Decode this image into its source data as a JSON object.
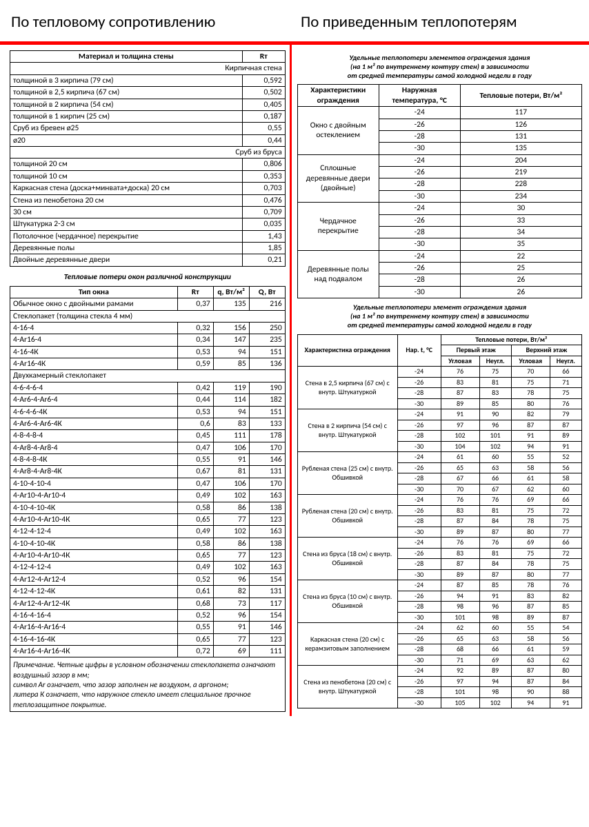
{
  "title_left": "По тепловому сопротивлению",
  "title_right": "По приведенным теплопотерям",
  "t1": {
    "headers": [
      "Материал и толщина стены",
      "Rт"
    ],
    "sections": [
      {
        "header": "Кирпичная стена",
        "rows": [
          [
            "толщиной в 3 кирпича (79 см)",
            "0,592"
          ],
          [
            "толщиной в 2,5 кирпича (67 см)",
            "0,502"
          ],
          [
            "толщиной в 2 кирпича (54 см)",
            "0,405"
          ],
          [
            "толщиной в 1 кирпич (25 см)",
            "0,187"
          ],
          [
            "Сруб из бревен ø25",
            "0,55"
          ],
          [
            "ø20",
            "0,44"
          ]
        ]
      },
      {
        "header": "Сруб из бруса",
        "rows": [
          [
            "толщиной 20 см",
            "0,806"
          ],
          [
            "толщиной 10 см",
            "0,353"
          ],
          [
            "Каркасная стена (доска+минвата+доска) 20 см",
            "0,703"
          ],
          [
            "Стена из пенобетона 20 см",
            "0,476"
          ],
          [
            "30 см",
            "0,709"
          ],
          [
            "Штукатурка 2-3 см",
            "0,035"
          ],
          [
            "Потолочное (чердачное) перекрытие",
            "1,43"
          ],
          [
            "Деревянные полы",
            "1,85"
          ],
          [
            "Двойные деревянные двери",
            "0,21"
          ]
        ]
      }
    ]
  },
  "sub1": "Тепловые потери окон различной конструкции",
  "t2": {
    "headers": [
      "Тип окна",
      "Rт",
      "q, Вт/м²",
      "Q, Вт"
    ],
    "sections": [
      {
        "rows": [
          [
            "Обычное окно с двойными рамами",
            "0,37",
            "135",
            "216"
          ]
        ]
      },
      {
        "header": "Стеклопакет (толщина стекла 4 мм)",
        "rows": [
          [
            "4-16-4",
            "0,32",
            "156",
            "250"
          ],
          [
            "4-Ar16-4",
            "0,34",
            "147",
            "235"
          ],
          [
            "4-16-4К",
            "0,53",
            "94",
            "151"
          ],
          [
            "4-Ar16-4К",
            "0,59",
            "85",
            "136"
          ]
        ]
      },
      {
        "header": "Двухкамерный стеклопакет",
        "rows": [
          [
            "4-6-4-6-4",
            "0,42",
            "119",
            "190"
          ],
          [
            "4-Ar6-4-Ar6-4",
            "0,44",
            "114",
            "182"
          ],
          [
            "4-6-4-6-4К",
            "0,53",
            "94",
            "151"
          ],
          [
            "4-Ar6-4-Ar6-4К",
            "0,6",
            "83",
            "133"
          ],
          [
            "4-8-4-8-4",
            "0,45",
            "111",
            "178"
          ],
          [
            "4-Ar8-4-Ar8-4",
            "0,47",
            "106",
            "170"
          ],
          [
            "4-8-4-8-4К",
            "0,55",
            "91",
            "146"
          ],
          [
            "4-Ar8-4-Ar8-4К",
            "0,67",
            "81",
            "131"
          ],
          [
            "4-10-4-10-4",
            "0,47",
            "106",
            "170"
          ],
          [
            "4-Ar10-4-Ar10-4",
            "0,49",
            "102",
            "163"
          ],
          [
            "4-10-4-10-4К",
            "0,58",
            "86",
            "138"
          ],
          [
            "4-Ar10-4-Ar10-4К",
            "0,65",
            "77",
            "123"
          ],
          [
            "4-12-4-12-4",
            "0,49",
            "102",
            "163"
          ],
          [
            "4-10-4-10-4К",
            "0,58",
            "86",
            "138"
          ],
          [
            "4-Ar10-4-Ar10-4К",
            "0,65",
            "77",
            "123"
          ],
          [
            "4-12-4-12-4",
            "0,49",
            "102",
            "163"
          ],
          [
            "4-Ar12-4-Ar12-4",
            "0,52",
            "96",
            "154"
          ],
          [
            "4-12-4-12-4К",
            "0,61",
            "82",
            "131"
          ],
          [
            "4-Ar12-4-Ar12-4К",
            "0,68",
            "73",
            "117"
          ],
          [
            "4-16-4-16-4",
            "0,52",
            "96",
            "154"
          ],
          [
            "4-Ar16-4-Ar16-4",
            "0,55",
            "91",
            "146"
          ],
          [
            "4-16-4-16-4К",
            "0,65",
            "77",
            "123"
          ],
          [
            "4-Ar16-4-Ar16-4К",
            "0,72",
            "69",
            "111"
          ]
        ]
      }
    ],
    "note": "Примечание. Четные цифры в условном обозначении стеклопакета означают воздушный зазор в мм;\nсимвол Ar означает, что зазор заполнен не воздухом, а аргоном;\nлитера К означает, что наружное стекло имеет специальное прочное теплозащитное покрытие."
  },
  "r_sub1_lines": [
    "Удельные теплопотери элементов ограждения здания",
    "(на 1 м² по внутреннему контуру стен) в зависимости",
    "от средней температуры самой холодной недели в году"
  ],
  "tr1": {
    "headers": [
      "Характеристики ограждения",
      "Наружная температура, °С",
      "Тепловые потери, Вт/м²"
    ],
    "groups": [
      {
        "label": "Окно с двойным остеклением",
        "rows": [
          [
            "-24",
            "117"
          ],
          [
            "-26",
            "126"
          ],
          [
            "-28",
            "131"
          ],
          [
            "-30",
            "135"
          ]
        ]
      },
      {
        "label": "Сплошные деревянные двери (двойные)",
        "rows": [
          [
            "-24",
            "204"
          ],
          [
            "-26",
            "219"
          ],
          [
            "-28",
            "228"
          ],
          [
            "-30",
            "234"
          ]
        ]
      },
      {
        "label": "Чердачное перекрытие",
        "rows": [
          [
            "-24",
            "30"
          ],
          [
            "-26",
            "33"
          ],
          [
            "-28",
            "34"
          ],
          [
            "-30",
            "35"
          ]
        ]
      },
      {
        "label": "Деревянные полы над подвалом",
        "rows": [
          [
            "-24",
            "22"
          ],
          [
            "-26",
            "25"
          ],
          [
            "-28",
            "26"
          ],
          [
            "-30",
            "26"
          ]
        ]
      }
    ]
  },
  "r_sub2_lines": [
    "Удельные теплопотери элемент ограждения здания",
    "(на 1 м² по внутреннему контуру стен) в зависимости",
    "от средней температуры самой холодной недели в году"
  ],
  "tr2": {
    "h_top": [
      "Характеристика ограждения",
      "Нар. t, °С",
      "Тепловые потери, Вт/м²"
    ],
    "h_mid": [
      "Первый этаж",
      "Верхний этаж"
    ],
    "h_low": [
      "Угловая",
      "Неугл.",
      "Угловая",
      "Неугл."
    ],
    "groups": [
      {
        "label": "Стена в 2,5 кирпича (67 см) с внутр. Штукатуркой",
        "rows": [
          [
            "-24",
            "76",
            "75",
            "70",
            "66"
          ],
          [
            "-26",
            "83",
            "81",
            "75",
            "71"
          ],
          [
            "-28",
            "87",
            "83",
            "78",
            "75"
          ],
          [
            "-30",
            "89",
            "85",
            "80",
            "76"
          ]
        ]
      },
      {
        "label": "Стена в 2 кирпича (54 см) с внутр. Штукатуркой",
        "rows": [
          [
            "-24",
            "91",
            "90",
            "82",
            "79"
          ],
          [
            "-26",
            "97",
            "96",
            "87",
            "87"
          ],
          [
            "-28",
            "102",
            "101",
            "91",
            "89"
          ],
          [
            "-30",
            "104",
            "102",
            "94",
            "91"
          ]
        ]
      },
      {
        "label": "Рубленая стена (25 см) с внутр. Обшивкой",
        "rows": [
          [
            "-24",
            "61",
            "60",
            "55",
            "52"
          ],
          [
            "-26",
            "65",
            "63",
            "58",
            "56"
          ],
          [
            "-28",
            "67",
            "66",
            "61",
            "58"
          ],
          [
            "-30",
            "70",
            "67",
            "62",
            "60"
          ]
        ]
      },
      {
        "label": "Рубленая стена (20 см) с внутр. Обшивкой",
        "rows": [
          [
            "-24",
            "76",
            "76",
            "69",
            "66"
          ],
          [
            "-26",
            "83",
            "81",
            "75",
            "72"
          ],
          [
            "-28",
            "87",
            "84",
            "78",
            "75"
          ],
          [
            "-30",
            "89",
            "87",
            "80",
            "77"
          ]
        ]
      },
      {
        "label": "Стена из бруса (18 см) с внутр. Обшивкой",
        "rows": [
          [
            "-24",
            "76",
            "76",
            "69",
            "66"
          ],
          [
            "-26",
            "83",
            "81",
            "75",
            "72"
          ],
          [
            "-28",
            "87",
            "84",
            "78",
            "75"
          ],
          [
            "-30",
            "89",
            "87",
            "80",
            "77"
          ]
        ]
      },
      {
        "label": "Стена из бруса (10 см) с внутр. Обшивкой",
        "rows": [
          [
            "-24",
            "87",
            "85",
            "78",
            "76"
          ],
          [
            "-26",
            "94",
            "91",
            "83",
            "82"
          ],
          [
            "-28",
            "98",
            "96",
            "87",
            "85"
          ],
          [
            "-30",
            "101",
            "98",
            "89",
            "87"
          ]
        ]
      },
      {
        "label": "Каркасная стена (20 см) с керамзитовым заполнением",
        "rows": [
          [
            "-24",
            "62",
            "60",
            "55",
            "54"
          ],
          [
            "-26",
            "65",
            "63",
            "58",
            "56"
          ],
          [
            "-28",
            "68",
            "66",
            "61",
            "59"
          ],
          [
            "-30",
            "71",
            "69",
            "63",
            "62"
          ]
        ]
      },
      {
        "label": "Стена из пенобетона (20 см) с внутр. Штукатуркой",
        "rows": [
          [
            "-24",
            "92",
            "89",
            "87",
            "80"
          ],
          [
            "-26",
            "97",
            "94",
            "87",
            "84"
          ],
          [
            "-28",
            "101",
            "98",
            "90",
            "88"
          ],
          [
            "-30",
            "105",
            "102",
            "94",
            "91"
          ]
        ]
      }
    ]
  }
}
